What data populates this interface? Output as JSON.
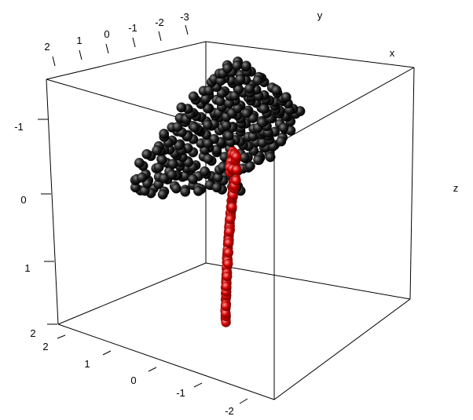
{
  "chart_data": {
    "type": "scatter",
    "projection": "3d",
    "title": "",
    "axes": {
      "x": {
        "label": "x"
      },
      "y": {
        "label": "y",
        "ticks": [
          "2",
          "1",
          "0",
          "-1",
          "-2",
          "-3"
        ]
      },
      "z": {
        "label": "z",
        "ticks": [
          "-1",
          "0",
          "1",
          "2"
        ]
      },
      "front": {
        "ticks": [
          "2",
          "1",
          "0",
          "-1",
          "-2"
        ]
      }
    },
    "grid": false,
    "legend": "none",
    "series": [
      {
        "color": "#111111",
        "highlight": "#8a8a8a",
        "points": [
          [
            0.3,
            0.47
          ],
          [
            0.62,
            0.47
          ],
          [
            0.45,
            0.47
          ],
          [
            0.52,
            0.47
          ],
          [
            0.38,
            0.47
          ],
          [
            0.25,
            0.47
          ],
          [
            0.34,
            0.45
          ],
          [
            0.42,
            0.45
          ],
          [
            0.56,
            0.45
          ],
          [
            0.48,
            0.45
          ],
          [
            0.29,
            0.45
          ],
          [
            0.63,
            0.45
          ],
          [
            0.28,
            0.51
          ],
          [
            0.35,
            0.51
          ],
          [
            0.41,
            0.51
          ],
          [
            0.47,
            0.51
          ],
          [
            0.57,
            0.51
          ],
          [
            0.52,
            0.51
          ],
          [
            0.23,
            0.52
          ],
          [
            0.32,
            0.52
          ],
          [
            0.39,
            0.52
          ],
          [
            0.5,
            0.52
          ],
          [
            0.6,
            0.52
          ],
          [
            0.27,
            0.54
          ],
          [
            0.36,
            0.54
          ],
          [
            0.44,
            0.54
          ],
          [
            0.55,
            0.54
          ],
          [
            0.62,
            0.54
          ],
          [
            0.31,
            0.56
          ],
          [
            0.4,
            0.56
          ],
          [
            0.46,
            0.56
          ],
          [
            0.58,
            0.56
          ],
          [
            0.66,
            0.56
          ],
          [
            0.26,
            0.58
          ],
          [
            0.35,
            0.58
          ],
          [
            0.43,
            0.58
          ],
          [
            0.52,
            0.58
          ],
          [
            0.61,
            0.58
          ],
          [
            0.33,
            0.6
          ],
          [
            0.41,
            0.6
          ],
          [
            0.49,
            0.6
          ],
          [
            0.57,
            0.6
          ],
          [
            0.65,
            0.6
          ],
          [
            0.7,
            0.6
          ],
          [
            0.29,
            0.62
          ],
          [
            0.38,
            0.62
          ],
          [
            0.45,
            0.62
          ],
          [
            0.54,
            0.62
          ],
          [
            0.63,
            0.62
          ],
          [
            0.7,
            0.62
          ],
          [
            0.34,
            0.64
          ],
          [
            0.43,
            0.64
          ],
          [
            0.51,
            0.64
          ],
          [
            0.59,
            0.64
          ],
          [
            0.68,
            0.64
          ],
          [
            0.74,
            0.64
          ],
          [
            0.32,
            0.66
          ],
          [
            0.4,
            0.66
          ],
          [
            0.48,
            0.66
          ],
          [
            0.56,
            0.66
          ],
          [
            0.64,
            0.66
          ],
          [
            0.72,
            0.66
          ],
          [
            0.37,
            0.68
          ],
          [
            0.45,
            0.68
          ],
          [
            0.53,
            0.68
          ],
          [
            0.61,
            0.68
          ],
          [
            0.69,
            0.68
          ],
          [
            0.76,
            0.68
          ],
          [
            0.34,
            0.7
          ],
          [
            0.43,
            0.7
          ],
          [
            0.5,
            0.7
          ],
          [
            0.58,
            0.7
          ],
          [
            0.66,
            0.7
          ],
          [
            0.74,
            0.7
          ],
          [
            0.39,
            0.72
          ],
          [
            0.47,
            0.72
          ],
          [
            0.55,
            0.72
          ],
          [
            0.63,
            0.72
          ],
          [
            0.71,
            0.72
          ],
          [
            0.79,
            0.72
          ],
          [
            0.37,
            0.74
          ],
          [
            0.45,
            0.74
          ],
          [
            0.52,
            0.74
          ],
          [
            0.6,
            0.74
          ],
          [
            0.68,
            0.74
          ],
          [
            0.76,
            0.74
          ],
          [
            0.42,
            0.76
          ],
          [
            0.5,
            0.76
          ],
          [
            0.57,
            0.76
          ],
          [
            0.65,
            0.76
          ],
          [
            0.73,
            0.76
          ],
          [
            0.8,
            0.76
          ],
          [
            0.4,
            0.78
          ],
          [
            0.48,
            0.78
          ],
          [
            0.55,
            0.78
          ],
          [
            0.63,
            0.78
          ],
          [
            0.71,
            0.78
          ],
          [
            0.78,
            0.78
          ],
          [
            0.45,
            0.8
          ],
          [
            0.53,
            0.8
          ],
          [
            0.6,
            0.8
          ],
          [
            0.68,
            0.8
          ],
          [
            0.75,
            0.8
          ],
          [
            0.82,
            0.8
          ],
          [
            0.43,
            0.82
          ],
          [
            0.51,
            0.82
          ],
          [
            0.58,
            0.82
          ],
          [
            0.66,
            0.82
          ],
          [
            0.73,
            0.82
          ],
          [
            0.8,
            0.82
          ],
          [
            0.48,
            0.84
          ],
          [
            0.56,
            0.84
          ],
          [
            0.63,
            0.84
          ],
          [
            0.71,
            0.84
          ],
          [
            0.78,
            0.84
          ],
          [
            0.84,
            0.84
          ],
          [
            0.46,
            0.86
          ],
          [
            0.54,
            0.86
          ],
          [
            0.61,
            0.86
          ],
          [
            0.69,
            0.86
          ],
          [
            0.76,
            0.86
          ],
          [
            0.83,
            0.86
          ],
          [
            0.51,
            0.88
          ],
          [
            0.59,
            0.88
          ],
          [
            0.66,
            0.88
          ],
          [
            0.74,
            0.88
          ],
          [
            0.81,
            0.88
          ],
          [
            0.49,
            0.9
          ],
          [
            0.57,
            0.9
          ],
          [
            0.64,
            0.9
          ],
          [
            0.72,
            0.9
          ],
          [
            0.79,
            0.9
          ],
          [
            0.54,
            0.92
          ],
          [
            0.62,
            0.92
          ],
          [
            0.69,
            0.92
          ],
          [
            0.77,
            0.92
          ],
          [
            0.52,
            0.94
          ],
          [
            0.6,
            0.94
          ],
          [
            0.67,
            0.94
          ],
          [
            0.75,
            0.94
          ],
          [
            0.57,
            0.96
          ],
          [
            0.65,
            0.96
          ],
          [
            0.72,
            0.96
          ],
          [
            0.55,
            0.98
          ],
          [
            0.63,
            0.98
          ],
          [
            0.7,
            0.98
          ],
          [
            0.6,
            1.0
          ],
          [
            0.67,
            1.0
          ],
          [
            0.58,
            1.02
          ],
          [
            0.65,
            1.02
          ],
          [
            0.62,
            1.04
          ]
        ]
      },
      {
        "color": "#cc0000",
        "highlight": "#ff8a8a",
        "points": [
          [
            0.2,
            0.2
          ],
          [
            0.22,
            0.23
          ],
          [
            0.25,
            0.26
          ],
          [
            0.27,
            0.29
          ],
          [
            0.29,
            0.32
          ],
          [
            0.31,
            0.35
          ],
          [
            0.33,
            0.38
          ],
          [
            0.35,
            0.41
          ],
          [
            0.37,
            0.44
          ],
          [
            0.39,
            0.47
          ],
          [
            0.41,
            0.5
          ],
          [
            0.43,
            0.53
          ],
          [
            0.45,
            0.56
          ],
          [
            0.47,
            0.59
          ],
          [
            0.49,
            0.62
          ],
          [
            0.51,
            0.65
          ],
          [
            0.53,
            0.68
          ],
          [
            0.55,
            0.71
          ],
          [
            0.57,
            0.74
          ],
          [
            0.59,
            0.77
          ],
          [
            0.61,
            0.8
          ],
          [
            0.63,
            0.83
          ],
          [
            0.65,
            0.86
          ],
          [
            0.67,
            0.89
          ],
          [
            0.24,
            0.22
          ],
          [
            0.28,
            0.27
          ],
          [
            0.32,
            0.33
          ],
          [
            0.36,
            0.39
          ],
          [
            0.4,
            0.45
          ],
          [
            0.44,
            0.51
          ],
          [
            0.48,
            0.57
          ],
          [
            0.52,
            0.63
          ],
          [
            0.56,
            0.69
          ],
          [
            0.6,
            0.75
          ],
          [
            0.64,
            0.81
          ],
          [
            0.68,
            0.87
          ],
          [
            0.26,
            0.25
          ],
          [
            0.3,
            0.3
          ],
          [
            0.34,
            0.36
          ],
          [
            0.38,
            0.42
          ],
          [
            0.42,
            0.48
          ],
          [
            0.46,
            0.54
          ],
          [
            0.5,
            0.6
          ],
          [
            0.54,
            0.66
          ],
          [
            0.58,
            0.72
          ],
          [
            0.62,
            0.78
          ],
          [
            0.66,
            0.84
          ],
          [
            0.7,
            0.9
          ],
          [
            0.23,
            0.19
          ],
          [
            0.21,
            0.24
          ],
          [
            0.27,
            0.21
          ],
          [
            0.3,
            0.27
          ],
          [
            0.34,
            0.31
          ],
          [
            0.37,
            0.37
          ],
          [
            0.41,
            0.42
          ],
          [
            0.44,
            0.48
          ],
          [
            0.48,
            0.52
          ],
          [
            0.51,
            0.58
          ],
          [
            0.55,
            0.63
          ],
          [
            0.58,
            0.69
          ],
          [
            0.62,
            0.73
          ],
          [
            0.65,
            0.79
          ],
          [
            0.69,
            0.83
          ],
          [
            0.72,
            0.88
          ],
          [
            0.7,
            0.94
          ],
          [
            0.66,
            0.95
          ],
          [
            0.62,
            0.97
          ],
          [
            0.58,
            0.98
          ],
          [
            0.64,
            0.99
          ],
          [
            0.6,
            1.01
          ],
          [
            0.67,
            1.0
          ],
          [
            0.56,
            0.96
          ],
          [
            0.52,
            0.94
          ],
          [
            0.55,
            0.91
          ],
          [
            0.59,
            0.92
          ],
          [
            0.63,
            0.92
          ],
          [
            0.73,
            0.92
          ],
          [
            0.71,
            0.97
          ]
        ]
      }
    ]
  }
}
